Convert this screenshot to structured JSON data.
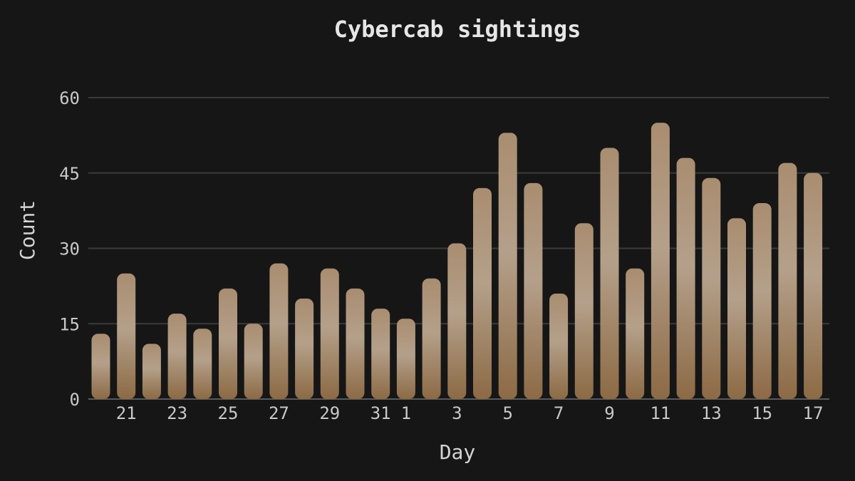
{
  "chart_data": {
    "type": "bar",
    "title": "Cybercab sightings",
    "xlabel": "Day",
    "ylabel": "Count",
    "ylim": [
      0,
      60
    ],
    "yticks": [
      0,
      15,
      30,
      45,
      60
    ],
    "grid": true,
    "categories": [
      "20",
      "21",
      "22",
      "23",
      "24",
      "25",
      "26",
      "27",
      "28",
      "29",
      "30",
      "31",
      "1",
      "2",
      "3",
      "4",
      "5",
      "6",
      "7",
      "8",
      "9",
      "10",
      "11",
      "12",
      "13",
      "14",
      "15",
      "16",
      "17"
    ],
    "tick_labels_shown": [
      "21",
      "23",
      "25",
      "27",
      "29",
      "31",
      "1",
      "3",
      "5",
      "7",
      "9",
      "11",
      "13",
      "15",
      "17"
    ],
    "values": [
      13,
      25,
      11,
      17,
      14,
      22,
      15,
      27,
      20,
      26,
      22,
      18,
      16,
      24,
      31,
      42,
      53,
      43,
      21,
      35,
      50,
      26,
      55,
      48,
      44,
      36,
      39,
      47,
      45
    ],
    "colors": {
      "background": "#161616",
      "bar_top": "#a98d70",
      "bar_mid": "#b4a08a",
      "bar_bottom": "#8c6a44",
      "grid": "#3a3a3a"
    }
  }
}
